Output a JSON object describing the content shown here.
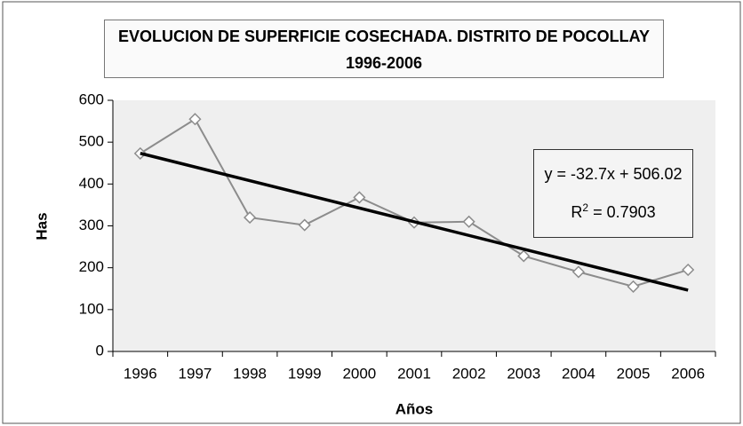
{
  "chart_data": {
    "type": "line",
    "title": "EVOLUCION DE SUPERFICIE COSECHADA. DISTRITO DE POCOLLAY 1996-2006",
    "x_label": "Años",
    "y_label": "Has",
    "categories": [
      "1996",
      "1997",
      "1998",
      "1999",
      "2000",
      "2001",
      "2002",
      "2003",
      "2004",
      "2005",
      "2006"
    ],
    "series": [
      {
        "name": "Has",
        "color": "#8c8c8c",
        "values": [
          473,
          555,
          320,
          302,
          368,
          308,
          310,
          228,
          190,
          155,
          195
        ]
      }
    ],
    "trendline": {
      "slope": -32.7,
      "intercept": 506.02,
      "color": "#000000",
      "equation": "y = -32.7x + 506.02",
      "r2_name": "R",
      "r2_power": "2",
      "r2_value": "= 0.7903"
    },
    "ylim": [
      0,
      600
    ],
    "yticks": [
      0,
      100,
      200,
      300,
      400,
      500,
      600
    ],
    "grid": false
  }
}
